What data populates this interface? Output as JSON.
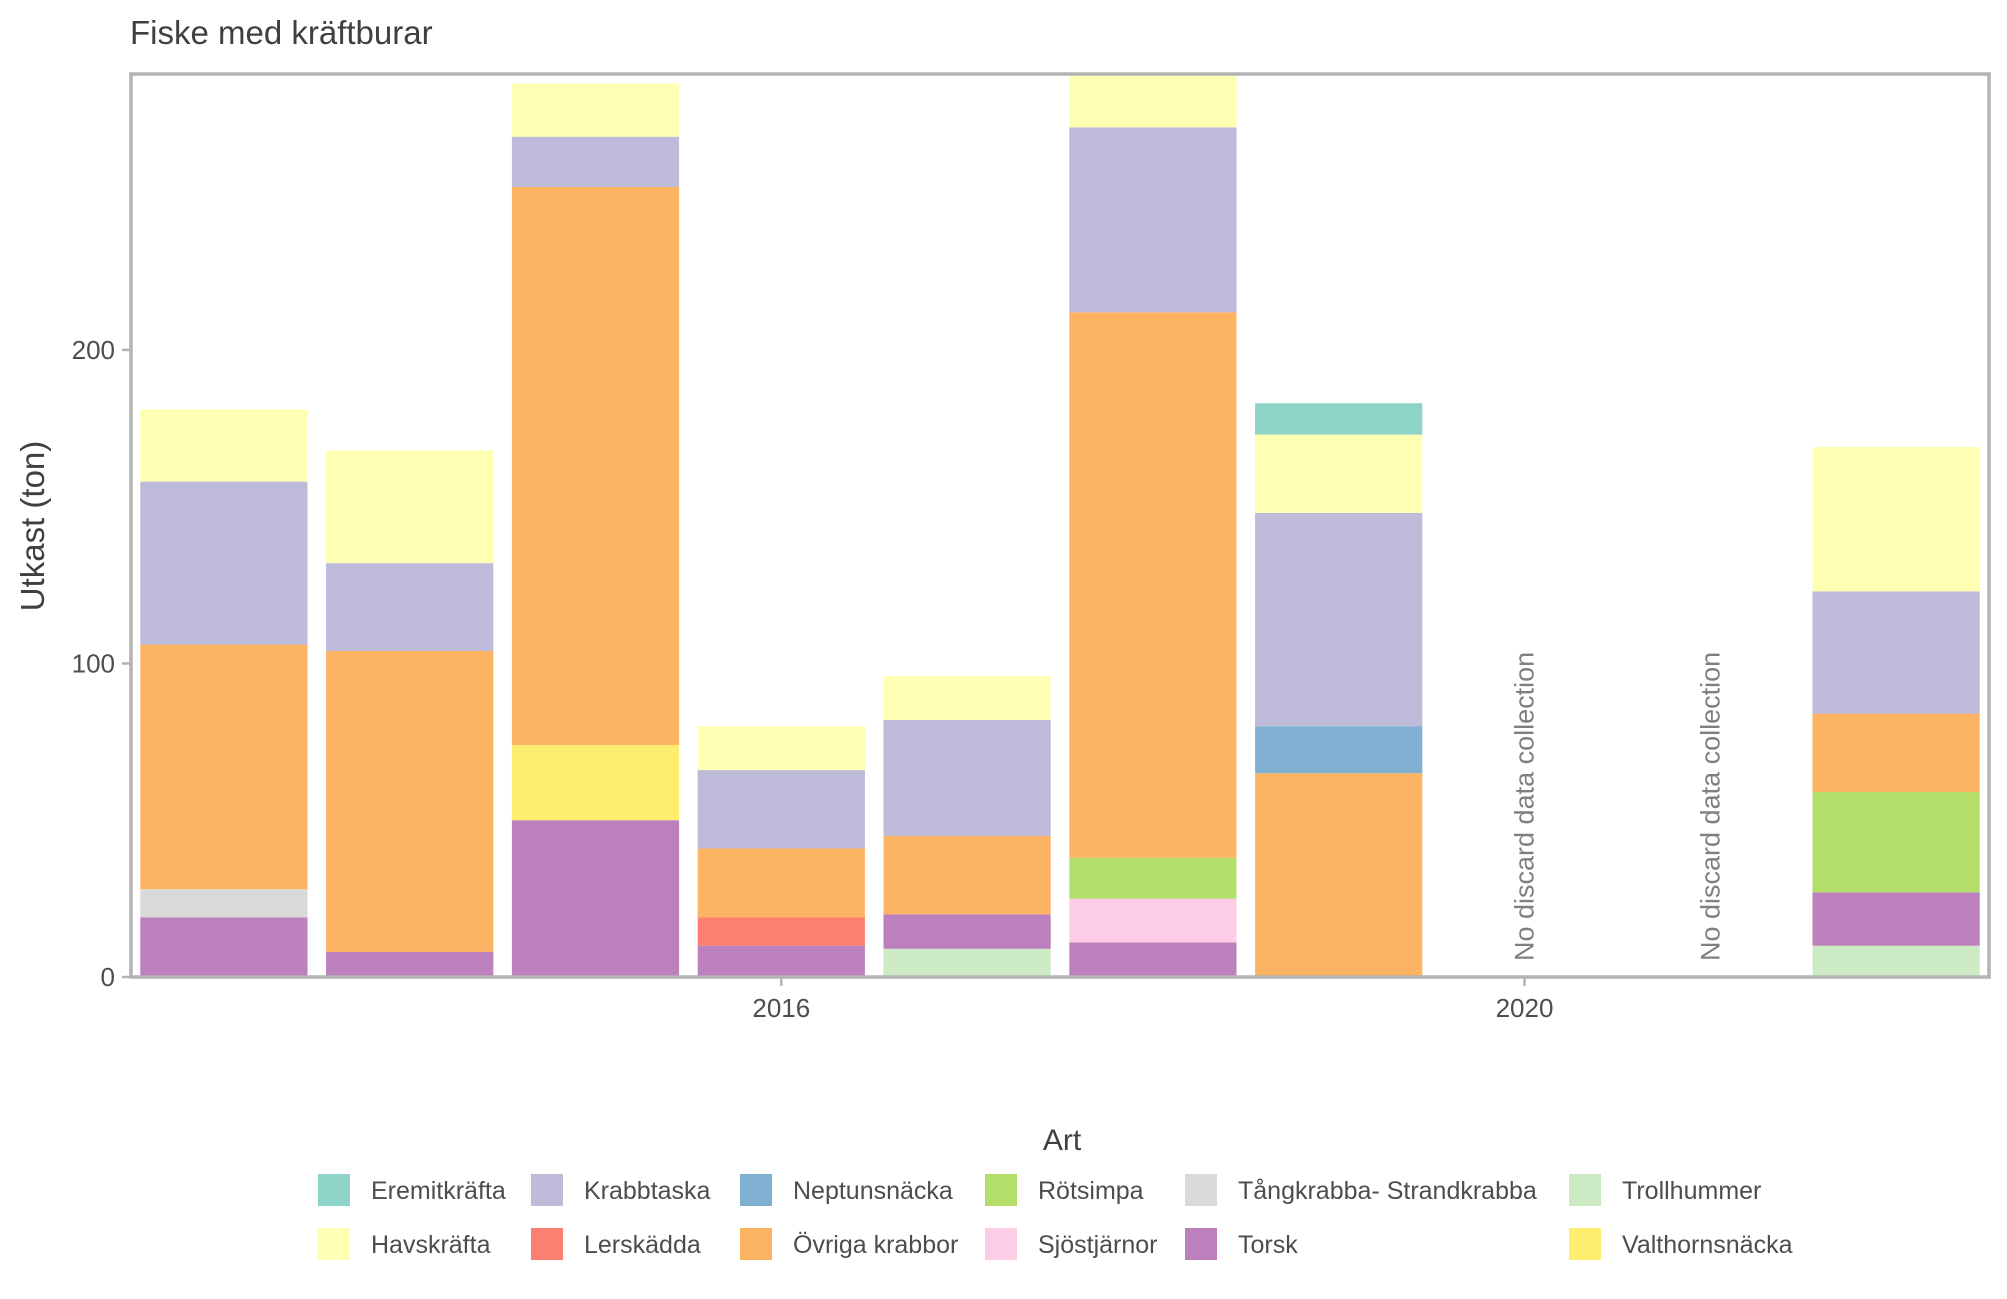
{
  "chart_data": {
    "type": "bar",
    "stacked": true,
    "title": "Fiske med kräftburar",
    "xlabel": "",
    "ylabel": "Utkast (ton)",
    "legend_title": "Art",
    "legend_position": "bottom",
    "grid": false,
    "x": [
      2013,
      2014,
      2015,
      2016,
      2017,
      2018,
      2019,
      2020,
      2021,
      2022
    ],
    "x_ticks": [
      2016,
      2020
    ],
    "x_tick_labels": [
      "2016",
      "2020"
    ],
    "xlim": [
      2012.5,
      2022.5
    ],
    "y_ticks": [
      0,
      100,
      200
    ],
    "y_tick_labels": [
      "0",
      "100",
      "200"
    ],
    "ylim": [
      0,
      288
    ],
    "annotations": [
      {
        "x": 2020,
        "text": "No discard data collection"
      },
      {
        "x": 2021,
        "text": "No discard data collection"
      }
    ],
    "stack_order": [
      "Trollhummer",
      "Torsk",
      "Valthornsnäcka",
      "Lerskädda",
      "Tångkrabba- Strandkrabba",
      "Sjöstjärnor",
      "Rötsimpa",
      "Övriga krabbor",
      "Neptunsnäcka",
      "Krabbtaska",
      "Havskräfta",
      "Eremitkräfta"
    ],
    "series": [
      {
        "name": "Eremitkräfta",
        "color": "#8DD3C7",
        "values": [
          0,
          0,
          0,
          0,
          0,
          0,
          10,
          0,
          0,
          0
        ]
      },
      {
        "name": "Havskräfta",
        "color": "#FFFFB3",
        "values": [
          23,
          36,
          17,
          14,
          14,
          17,
          25,
          0,
          0,
          46
        ]
      },
      {
        "name": "Krabbtaska",
        "color": "#BEBADA",
        "values": [
          52,
          28,
          16,
          25,
          37,
          59,
          68,
          0,
          0,
          39
        ]
      },
      {
        "name": "Lerskädda",
        "color": "#FB8072",
        "values": [
          0,
          0,
          0,
          9,
          0,
          0,
          0,
          0,
          0,
          0
        ]
      },
      {
        "name": "Neptunsnäcka",
        "color": "#80B1D3",
        "values": [
          0,
          0,
          0,
          0,
          0,
          0,
          15,
          0,
          0,
          0
        ]
      },
      {
        "name": "Övriga krabbor",
        "color": "#FDB462",
        "values": [
          78,
          96,
          178,
          22,
          25,
          174,
          65,
          0,
          0,
          25
        ]
      },
      {
        "name": "Rötsimpa",
        "color": "#B3DE69",
        "values": [
          0,
          0,
          0,
          0,
          0,
          13,
          0,
          0,
          0,
          32
        ]
      },
      {
        "name": "Sjöstjärnor",
        "color": "#FCCDE5",
        "values": [
          0,
          0,
          0,
          0,
          0,
          14,
          0,
          0,
          0,
          0
        ]
      },
      {
        "name": "Tångkrabba- Strandkrabba",
        "color": "#D9D9D9",
        "values": [
          9,
          0,
          0,
          0,
          0,
          0,
          0,
          0,
          0,
          0
        ]
      },
      {
        "name": "Torsk",
        "color": "#BC80BD",
        "values": [
          19,
          8,
          50,
          10,
          11,
          11,
          0,
          0,
          0,
          17
        ]
      },
      {
        "name": "Trollhummer",
        "color": "#CCEBC5",
        "values": [
          0,
          0,
          0,
          0,
          9,
          0,
          0,
          0,
          0,
          10
        ]
      },
      {
        "name": "Valthornsnäcka",
        "color": "#FFED6F",
        "values": [
          0,
          0,
          24,
          0,
          0,
          0,
          0,
          0,
          0,
          0
        ]
      }
    ]
  }
}
